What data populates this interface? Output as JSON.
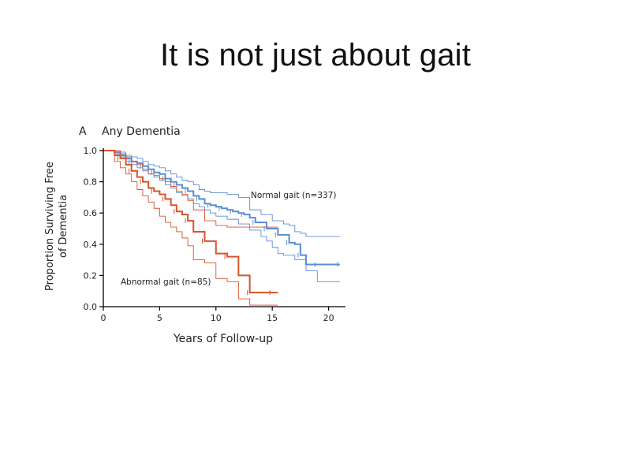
{
  "slide": {
    "title": "It is not just about gait"
  },
  "chart_data": {
    "type": "line",
    "step": true,
    "panel_letter": "A",
    "title": "Any Dementia",
    "xlabel": "Years of Follow-up",
    "ylabel_line1": "Proportion Surviving Free",
    "ylabel_line2": "of Dementia",
    "xlim": [
      0,
      21.5
    ],
    "ylim": [
      0,
      1.0
    ],
    "xticks": [
      0,
      5,
      10,
      15,
      20
    ],
    "yticks": [
      0.0,
      0.2,
      0.4,
      0.6,
      0.8,
      1.0
    ],
    "ytick_labels": [
      "0.0",
      "0.2",
      "0.4",
      "0.6",
      "0.8",
      "1.0"
    ],
    "grid": false,
    "colors": {
      "normal": "#5b8dd6",
      "abnormal": "#d9532b"
    },
    "annotations": [
      {
        "text": "Normal gait (n=337)",
        "series": "normal"
      },
      {
        "text": "Abnormal gait (n=85)",
        "series": "abnormal"
      }
    ],
    "series": [
      {
        "id": "normal",
        "role": "estimate",
        "color": "#5b8dd6",
        "x": [
          0,
          1,
          1.5,
          2,
          2.5,
          3,
          3.5,
          4,
          4.5,
          5,
          5.5,
          6,
          6.5,
          7,
          7.5,
          8,
          8.5,
          9,
          9.5,
          10,
          10.5,
          11,
          11.5,
          12,
          12.5,
          13,
          13.5,
          14,
          14.5,
          15,
          15.5,
          16,
          16.5,
          17,
          17.5,
          18,
          19,
          20,
          21
        ],
        "y": [
          1.0,
          0.99,
          0.97,
          0.95,
          0.93,
          0.92,
          0.9,
          0.88,
          0.86,
          0.85,
          0.82,
          0.8,
          0.78,
          0.76,
          0.74,
          0.71,
          0.69,
          0.66,
          0.65,
          0.64,
          0.63,
          0.62,
          0.61,
          0.6,
          0.59,
          0.57,
          0.54,
          0.54,
          0.5,
          0.5,
          0.46,
          0.46,
          0.41,
          0.4,
          0.33,
          0.27,
          0.27,
          0.27,
          0.27
        ]
      },
      {
        "id": "normal-upper",
        "role": "ci",
        "color": "#5b8dd6",
        "x": [
          0,
          1,
          1.5,
          2,
          2.5,
          3,
          3.5,
          4,
          4.5,
          5,
          5.5,
          6,
          6.5,
          7,
          7.5,
          8,
          8.5,
          9,
          9.5,
          10,
          11,
          12,
          13,
          14,
          15,
          15.5,
          16,
          16.5,
          17,
          17.5,
          18,
          19,
          20,
          21
        ],
        "y": [
          1.0,
          1.0,
          0.99,
          0.97,
          0.96,
          0.95,
          0.93,
          0.91,
          0.9,
          0.89,
          0.87,
          0.85,
          0.83,
          0.81,
          0.8,
          0.78,
          0.75,
          0.74,
          0.73,
          0.73,
          0.72,
          0.7,
          0.62,
          0.59,
          0.55,
          0.55,
          0.53,
          0.52,
          0.48,
          0.47,
          0.45,
          0.45,
          0.45,
          0.45
        ]
      },
      {
        "id": "normal-lower",
        "role": "ci",
        "color": "#5b8dd6",
        "x": [
          0,
          1,
          1.5,
          2,
          2.5,
          3,
          3.5,
          4,
          4.5,
          5,
          5.5,
          6,
          6.5,
          7,
          7.5,
          8,
          8.5,
          9,
          9.5,
          10,
          11,
          12,
          13,
          14,
          14.5,
          15,
          15.5,
          16,
          17,
          18,
          19,
          21
        ],
        "y": [
          1.0,
          0.98,
          0.96,
          0.93,
          0.91,
          0.89,
          0.87,
          0.85,
          0.83,
          0.81,
          0.78,
          0.76,
          0.73,
          0.71,
          0.69,
          0.66,
          0.64,
          0.62,
          0.6,
          0.58,
          0.56,
          0.53,
          0.49,
          0.45,
          0.42,
          0.38,
          0.34,
          0.33,
          0.3,
          0.23,
          0.16,
          0.16
        ]
      },
      {
        "id": "abnormal",
        "role": "estimate",
        "color": "#d9532b",
        "x": [
          0,
          1,
          1.5,
          2,
          2.5,
          3,
          3.5,
          4,
          4.5,
          5,
          5.5,
          6,
          6.5,
          7,
          7.5,
          8,
          9,
          10,
          11,
          12,
          13,
          14,
          15,
          15.5
        ],
        "y": [
          1.0,
          0.97,
          0.95,
          0.91,
          0.87,
          0.83,
          0.8,
          0.76,
          0.74,
          0.72,
          0.69,
          0.65,
          0.61,
          0.59,
          0.55,
          0.48,
          0.42,
          0.34,
          0.32,
          0.2,
          0.09,
          0.09,
          0.09,
          0.09
        ]
      },
      {
        "id": "abnormal-upper",
        "role": "ci",
        "color": "#d9532b",
        "x": [
          0,
          1,
          1.5,
          2,
          2.5,
          3,
          3.5,
          4,
          4.5,
          5,
          5.5,
          6,
          6.5,
          7,
          7.5,
          8,
          9,
          10,
          11,
          12,
          13,
          14,
          15.5
        ],
        "y": [
          1.0,
          1.0,
          0.98,
          0.96,
          0.93,
          0.91,
          0.88,
          0.85,
          0.84,
          0.82,
          0.8,
          0.77,
          0.74,
          0.72,
          0.68,
          0.62,
          0.55,
          0.52,
          0.51,
          0.51,
          0.51,
          0.51,
          0.51
        ]
      },
      {
        "id": "abnormal-lower",
        "role": "ci",
        "color": "#d9532b",
        "x": [
          0,
          1,
          1.5,
          2,
          2.5,
          3,
          3.5,
          4,
          4.5,
          5,
          5.5,
          6,
          6.5,
          7,
          7.5,
          8,
          9,
          10,
          11,
          12,
          13,
          14,
          15.5
        ],
        "y": [
          1.0,
          0.93,
          0.89,
          0.85,
          0.8,
          0.75,
          0.71,
          0.67,
          0.63,
          0.58,
          0.54,
          0.51,
          0.48,
          0.44,
          0.39,
          0.3,
          0.28,
          0.18,
          0.16,
          0.05,
          0.01,
          0.01,
          0.01
        ]
      }
    ]
  }
}
